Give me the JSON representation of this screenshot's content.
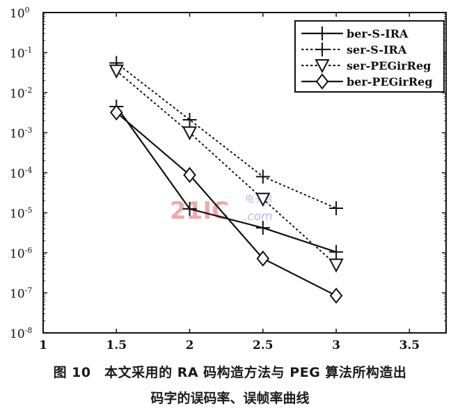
{
  "chart_data": {
    "type": "line",
    "title": "",
    "xlabel": "",
    "ylabel": "",
    "xlim": [
      1,
      3.75
    ],
    "ylim": [
      1e-08,
      1
    ],
    "yscale": "log",
    "xticks": [
      "1",
      "1.5",
      "2",
      "2.5",
      "3",
      "3.5"
    ],
    "xtick_values": [
      1,
      1.5,
      2,
      2.5,
      3,
      3.5
    ],
    "yticks": [
      {
        "base": "10",
        "exp": "0"
      },
      {
        "base": "10",
        "exp": "-1"
      },
      {
        "base": "10",
        "exp": "-2"
      },
      {
        "base": "10",
        "exp": "-3"
      },
      {
        "base": "10",
        "exp": "-4"
      },
      {
        "base": "10",
        "exp": "-5"
      },
      {
        "base": "10",
        "exp": "-6"
      },
      {
        "base": "10",
        "exp": "-7"
      },
      {
        "base": "10",
        "exp": "-8"
      }
    ],
    "legend_position": "top-right",
    "series": [
      {
        "name": "ber-S-IRA",
        "style": "solid",
        "marker": "plus",
        "x": [
          1.5,
          2,
          2.5,
          3
        ],
        "y": [
          0.0045,
          1.25e-05,
          4.2e-06,
          1.05e-06
        ]
      },
      {
        "name": "ser-S-IRA",
        "style": "dotted",
        "marker": "plus",
        "x": [
          1.5,
          2,
          2.5,
          3
        ],
        "y": [
          0.055,
          0.0021,
          8e-05,
          1.3e-05
        ]
      },
      {
        "name": "ser-PEGirReg",
        "style": "dotted",
        "marker": "triangle-down",
        "x": [
          1.5,
          2,
          2.5,
          3
        ],
        "y": [
          0.035,
          0.001,
          2.2e-05,
          5e-07
        ]
      },
      {
        "name": "ber-PEGirReg",
        "style": "solid",
        "marker": "diamond",
        "x": [
          1.5,
          2,
          2.5,
          3
        ],
        "y": [
          0.0032,
          8.8e-05,
          7.2e-07,
          8.5e-08
        ]
      }
    ],
    "watermark": "21IC 电子网 .com"
  },
  "caption": {
    "line1": "图 10　本文采用的 RA 码构造方法与 PEG 算法所构造出",
    "line2": "码字的误码率、误帧率曲线"
  },
  "colors": {
    "ink": "#111111",
    "watermark": "#e8848c",
    "watermark2": "#9aa3c8"
  }
}
